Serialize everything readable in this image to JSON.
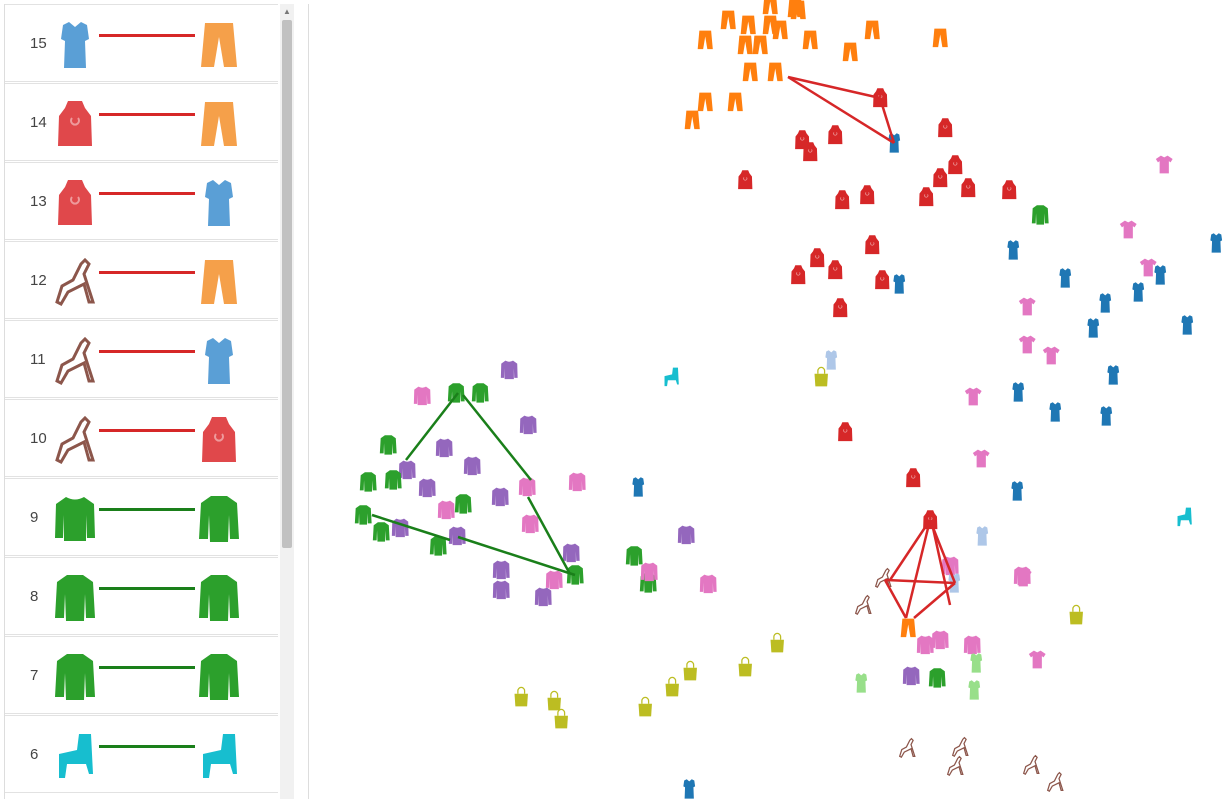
{
  "pairs": [
    {
      "index": "15",
      "left": "shirt-icon",
      "left_color": "#5a9fd6",
      "right": "pants-icon",
      "right_color": "#f5a04a",
      "link_color": "#d62728"
    },
    {
      "index": "14",
      "left": "dress-icon",
      "left_color": "#e0484b",
      "right": "pants-icon",
      "right_color": "#f5a04a",
      "link_color": "#d62728"
    },
    {
      "index": "13",
      "left": "dress-icon",
      "left_color": "#e0484b",
      "right": "shirt-icon",
      "right_color": "#5a9fd6",
      "link_color": "#d62728"
    },
    {
      "index": "12",
      "left": "sandal-icon",
      "left_color": "#8c564b",
      "right": "pants-icon",
      "right_color": "#f5a04a",
      "link_color": "#d62728"
    },
    {
      "index": "11",
      "left": "sandal-icon",
      "left_color": "#8c564b",
      "right": "shirt-icon",
      "right_color": "#5a9fd6",
      "link_color": "#d62728"
    },
    {
      "index": "10",
      "left": "sandal-icon",
      "left_color": "#8c564b",
      "right": "dress-icon",
      "right_color": "#e0484b",
      "link_color": "#d62728"
    },
    {
      "index": "9",
      "left": "pullover-icon",
      "left_color": "#2ca02c",
      "right": "coat-icon",
      "right_color": "#2ca02c",
      "link_color": "#1a7f1a"
    },
    {
      "index": "8",
      "left": "coat-icon",
      "left_color": "#2ca02c",
      "right": "coat-icon",
      "right_color": "#2ca02c",
      "link_color": "#1a7f1a"
    },
    {
      "index": "7",
      "left": "coat-icon",
      "left_color": "#2ca02c",
      "right": "coat-icon",
      "right_color": "#2ca02c",
      "link_color": "#1a7f1a"
    },
    {
      "index": "6",
      "left": "boot-icon",
      "left_color": "#17becf",
      "right": "boot-icon",
      "right_color": "#17becf",
      "link_color": "#1a7f1a"
    }
  ],
  "scatter_colors": {
    "pants": "#ff7f0e",
    "dress": "#d62728",
    "shirt": "#1f77b4",
    "tshirt": "#e377c2",
    "pullover": "#9467bd",
    "coat": "#2ca02c",
    "bag": "#bcbd22",
    "sandal": "#8c564b",
    "boot": "#17becf",
    "shirt_light": "#98df8a",
    "pink_light": "#f7b6d2",
    "blue_light": "#aec7e8",
    "lilac": "#c5b0d5"
  }
}
